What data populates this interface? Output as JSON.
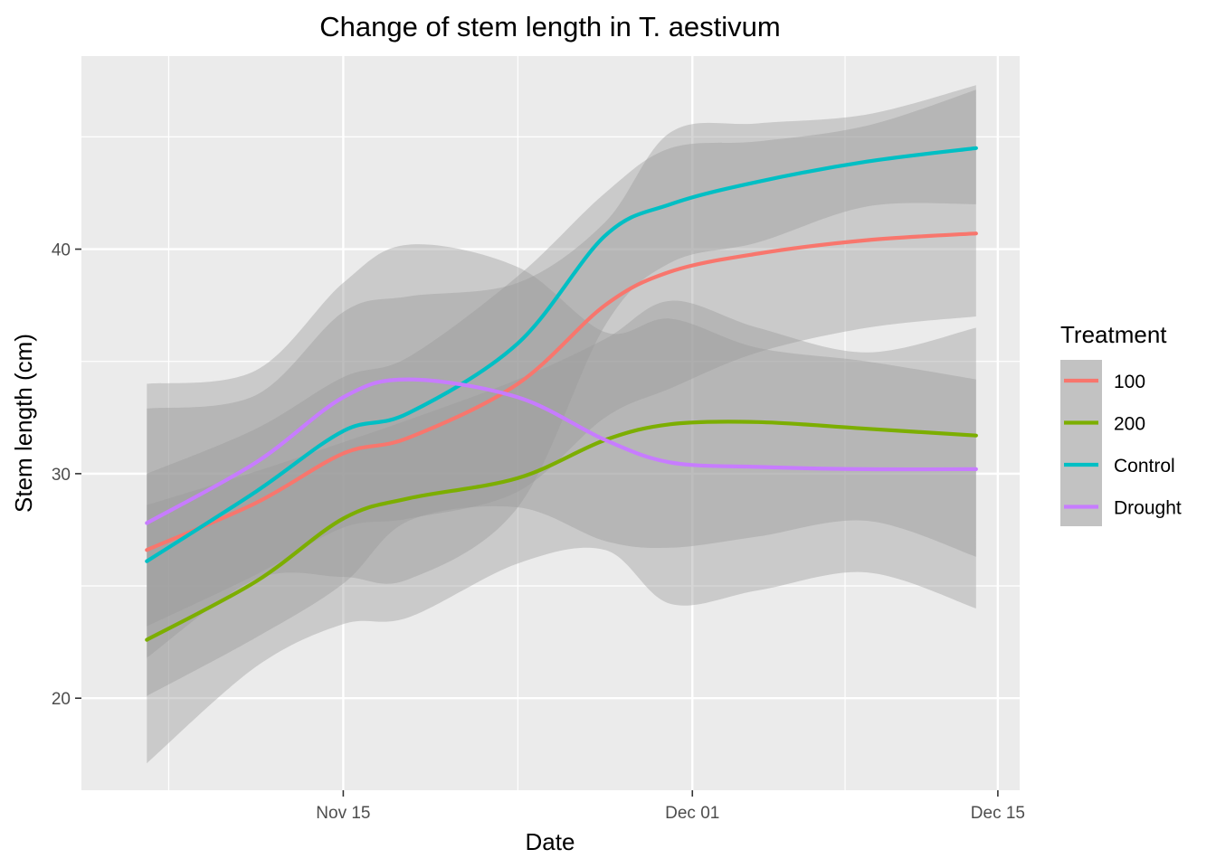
{
  "chart_data": {
    "type": "line",
    "title": "Change of stem length in T. aestivum",
    "xlabel": "Date",
    "ylabel": "Stem length (cm)",
    "x_axis": {
      "type": "date",
      "range": [
        "2023-11-03",
        "2023-12-16"
      ],
      "ticks": [
        {
          "date": "2023-11-15",
          "label": "Nov 15"
        },
        {
          "date": "2023-12-01",
          "label": "Dec 01"
        },
        {
          "date": "2023-12-15",
          "label": "Dec 15"
        }
      ],
      "minor_grid": [
        "2023-11-07",
        "2023-11-23",
        "2023-12-08"
      ]
    },
    "y_axis": {
      "range": [
        15.9,
        48.6
      ],
      "ticks": [
        20,
        30,
        40
      ],
      "minor_grid": [
        25,
        35,
        45
      ]
    },
    "grid": true,
    "legend": {
      "title": "Treatment",
      "position": "right"
    },
    "x": [
      "2023-11-06",
      "2023-11-11",
      "2023-11-15",
      "2023-11-18",
      "2023-11-23",
      "2023-11-27",
      "2023-11-30",
      "2023-12-04",
      "2023-12-09",
      "2023-12-14"
    ],
    "series": [
      {
        "name": "100",
        "color": "#F8766D",
        "values": [
          26.6,
          28.7,
          30.9,
          31.6,
          34.0,
          37.5,
          39.0,
          39.8,
          40.4,
          40.7
        ],
        "lower": [
          23.2,
          25.5,
          27.6,
          28.0,
          29.2,
          32.5,
          33.8,
          35.4,
          36.5,
          37.0
        ],
        "upper": [
          30.0,
          32.0,
          34.3,
          35.2,
          38.8,
          42.5,
          44.5,
          44.8,
          45.5,
          47.1
        ]
      },
      {
        "name": "200",
        "color": "#7CAE00",
        "values": [
          22.6,
          25.2,
          28.0,
          28.9,
          29.8,
          31.5,
          32.2,
          32.3,
          32.0,
          31.7
        ],
        "lower": [
          17.1,
          21.4,
          23.3,
          23.6,
          26.0,
          26.6,
          24.2,
          24.8,
          25.6,
          24.0
        ],
        "upper": [
          28.6,
          30.1,
          31.4,
          32.4,
          34.2,
          36.0,
          37.7,
          36.5,
          35.4,
          36.5
        ]
      },
      {
        "name": "Control",
        "color": "#00BFC4",
        "values": [
          26.1,
          29.2,
          31.9,
          32.7,
          35.8,
          40.6,
          42.0,
          43.0,
          43.9,
          44.5
        ],
        "lower": [
          21.8,
          25.3,
          25.4,
          25.3,
          28.5,
          36.6,
          39.4,
          40.3,
          41.9,
          42.0
        ],
        "upper": [
          32.9,
          33.5,
          37.2,
          37.9,
          38.5,
          41.2,
          45.2,
          45.6,
          46.0,
          47.3
        ]
      },
      {
        "name": "Drought",
        "color": "#C77CFF",
        "values": [
          27.8,
          30.5,
          33.4,
          34.2,
          33.4,
          31.5,
          30.5,
          30.3,
          30.2,
          30.2
        ],
        "lower": [
          20.1,
          22.7,
          25.1,
          27.9,
          28.5,
          27.0,
          26.7,
          27.2,
          27.9,
          26.3
        ],
        "upper": [
          34.0,
          34.6,
          38.5,
          40.2,
          39.2,
          36.3,
          36.9,
          35.6,
          35.0,
          34.2
        ]
      }
    ]
  }
}
